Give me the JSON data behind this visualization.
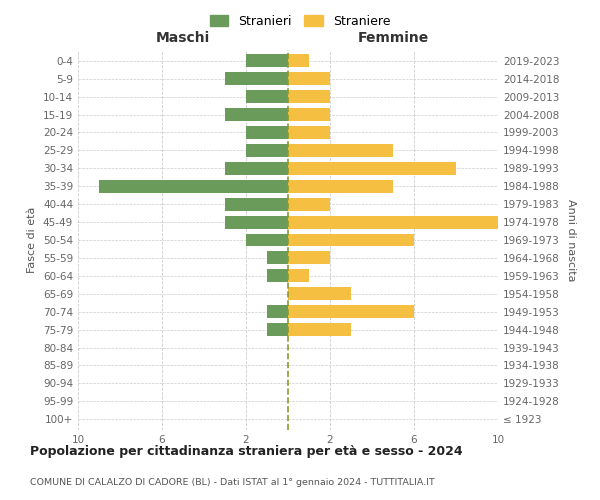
{
  "age_groups": [
    "100+",
    "95-99",
    "90-94",
    "85-89",
    "80-84",
    "75-79",
    "70-74",
    "65-69",
    "60-64",
    "55-59",
    "50-54",
    "45-49",
    "40-44",
    "35-39",
    "30-34",
    "25-29",
    "20-24",
    "15-19",
    "10-14",
    "5-9",
    "0-4"
  ],
  "birth_years": [
    "≤ 1923",
    "1924-1928",
    "1929-1933",
    "1934-1938",
    "1939-1943",
    "1944-1948",
    "1949-1953",
    "1954-1958",
    "1959-1963",
    "1964-1968",
    "1969-1973",
    "1974-1978",
    "1979-1983",
    "1984-1988",
    "1989-1993",
    "1994-1998",
    "1999-2003",
    "2004-2008",
    "2009-2013",
    "2014-2018",
    "2019-2023"
  ],
  "maschi": [
    0,
    0,
    0,
    0,
    0,
    1,
    1,
    0,
    1,
    1,
    2,
    3,
    3,
    9,
    3,
    2,
    2,
    3,
    2,
    3,
    2
  ],
  "femmine": [
    0,
    0,
    0,
    0,
    0,
    3,
    6,
    3,
    1,
    2,
    6,
    10,
    2,
    5,
    8,
    5,
    2,
    2,
    2,
    2,
    1
  ],
  "color_maschi": "#6a9b5a",
  "color_femmine": "#f5c042",
  "title": "Popolazione per cittadinanza straniera per età e sesso - 2024",
  "subtitle": "COMUNE DI CALALZO DI CADORE (BL) - Dati ISTAT al 1° gennaio 2024 - TUTTITALIA.IT",
  "ylabel_left": "Fasce di età",
  "ylabel_right": "Anni di nascita",
  "xlabel_maschi": "Maschi",
  "xlabel_femmine": "Femmine",
  "legend_stranieri": "Stranieri",
  "legend_straniere": "Straniere",
  "xlim": 10,
  "xtick_positions": [
    -10,
    -6,
    -2,
    2,
    6,
    10
  ],
  "background_color": "#ffffff",
  "grid_color": "#cccccc",
  "vline_color": "#8a9a2a",
  "title_fontsize": 9,
  "subtitle_fontsize": 6.8,
  "tick_fontsize": 7.5,
  "label_fontsize": 8,
  "header_fontsize": 10
}
